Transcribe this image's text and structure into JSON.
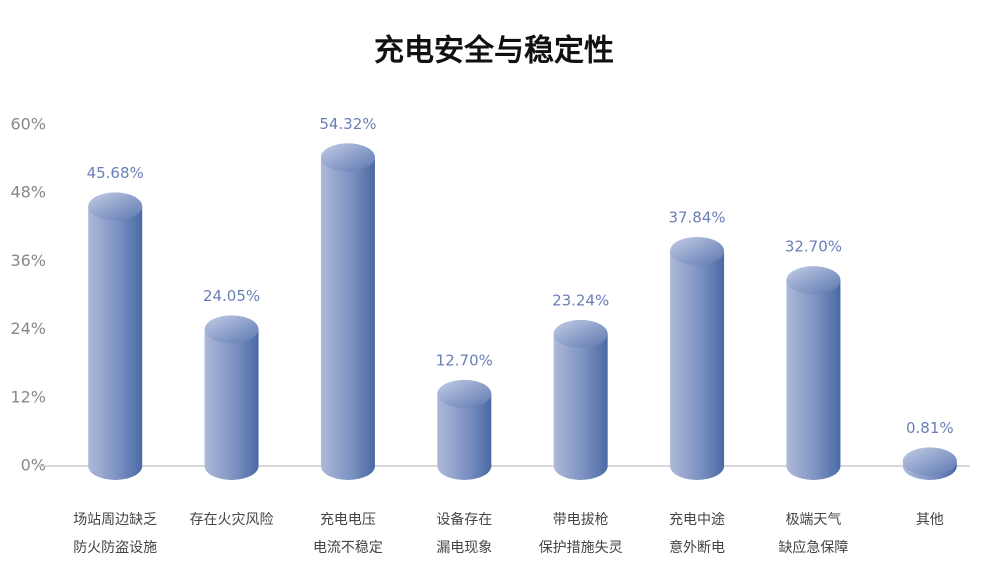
{
  "chart_data": {
    "type": "bar",
    "title": "充电安全与稳定性",
    "categories": [
      "场站周边缺乏\n防火防盗设施",
      "存在火灾风险",
      "充电电压\n电流不稳定",
      "设备存在\n漏电现象",
      "带电拔枪\n保护措施失灵",
      "充电中途\n意外断电",
      "极端天气\n缺应急保障",
      "其他"
    ],
    "values": [
      45.68,
      24.05,
      54.32,
      12.7,
      23.24,
      37.84,
      32.7,
      0.81
    ],
    "value_labels": [
      "45.68%",
      "24.05%",
      "54.32%",
      "12.70%",
      "23.24%",
      "37.84%",
      "32.70%",
      "0.81%"
    ],
    "color": "#6f86b8",
    "ylim": [
      0,
      60
    ],
    "yticks": [
      {
        "value": 0,
        "label": "0%"
      },
      {
        "value": 12,
        "label": "12%"
      },
      {
        "value": 24,
        "label": "24%"
      },
      {
        "value": 36,
        "label": "36%"
      },
      {
        "value": 48,
        "label": "48%"
      },
      {
        "value": 60,
        "label": "60%"
      }
    ],
    "grid": false
  }
}
